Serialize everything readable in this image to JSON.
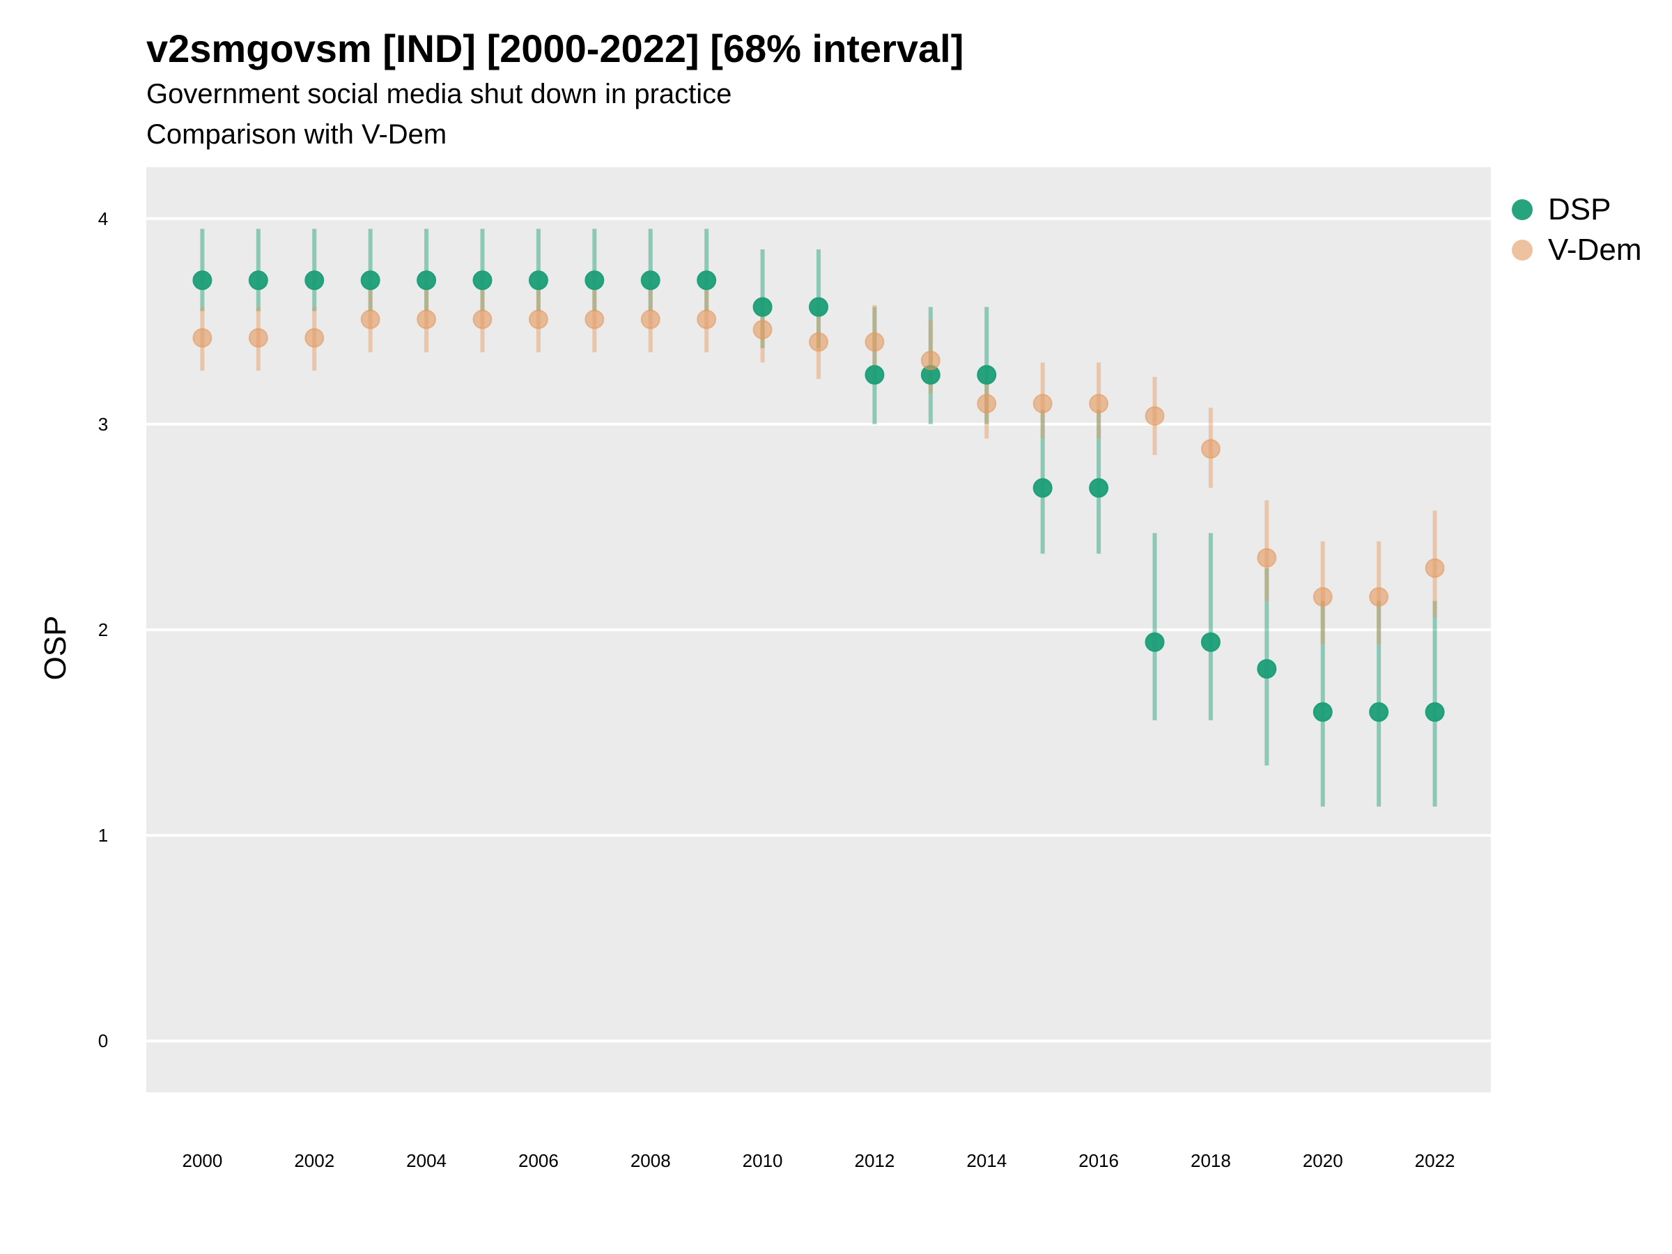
{
  "title": "v2smgovsm [IND] [2000-2022] [68% interval]",
  "subtitle_line1": "Government social media shut down in practice",
  "subtitle_line2": "Comparison with V-Dem",
  "chart_data": {
    "type": "scatter",
    "title": "v2smgovsm [IND] [2000-2022] [68% interval]",
    "subtitle": "Government social media shut down in practice / Comparison with V-Dem",
    "xlabel": "",
    "ylabel": "OSP",
    "ylim": [
      -0.25,
      4.25
    ],
    "xlim": [
      1999,
      2023
    ],
    "y_ticks": [
      0,
      1,
      2,
      3,
      4
    ],
    "x_ticks": [
      2000,
      2002,
      2004,
      2006,
      2008,
      2010,
      2012,
      2014,
      2016,
      2018,
      2020,
      2022
    ],
    "grid": "horizontal",
    "legend_position": "right",
    "x": [
      2000,
      2001,
      2002,
      2003,
      2004,
      2005,
      2006,
      2007,
      2008,
      2009,
      2010,
      2011,
      2012,
      2013,
      2014,
      2015,
      2016,
      2017,
      2018,
      2019,
      2020,
      2021,
      2022
    ],
    "series": [
      {
        "name": "DSP",
        "color": "#1b9e77",
        "values": [
          3.7,
          3.7,
          3.7,
          3.7,
          3.7,
          3.7,
          3.7,
          3.7,
          3.7,
          3.7,
          3.57,
          3.57,
          3.24,
          3.24,
          3.24,
          2.69,
          2.69,
          1.94,
          1.94,
          1.81,
          1.6,
          1.6,
          1.6
        ],
        "lower": [
          3.55,
          3.55,
          3.55,
          3.55,
          3.55,
          3.55,
          3.55,
          3.55,
          3.55,
          3.55,
          3.37,
          3.37,
          3.0,
          3.0,
          3.0,
          2.37,
          2.37,
          1.56,
          1.56,
          1.34,
          1.14,
          1.14,
          1.14
        ],
        "upper": [
          3.95,
          3.95,
          3.95,
          3.95,
          3.95,
          3.95,
          3.95,
          3.95,
          3.95,
          3.95,
          3.85,
          3.85,
          3.57,
          3.57,
          3.57,
          3.07,
          3.07,
          2.47,
          2.47,
          2.3,
          2.14,
          2.14,
          2.14
        ]
      },
      {
        "name": "V-Dem",
        "color": "#e59a5f",
        "values": [
          3.42,
          3.42,
          3.42,
          3.51,
          3.51,
          3.51,
          3.51,
          3.51,
          3.51,
          3.51,
          3.46,
          3.4,
          3.4,
          3.31,
          3.1,
          3.1,
          3.1,
          3.04,
          2.88,
          2.35,
          2.16,
          2.16,
          2.3
        ],
        "lower": [
          3.26,
          3.26,
          3.26,
          3.35,
          3.35,
          3.35,
          3.35,
          3.35,
          3.35,
          3.35,
          3.3,
          3.22,
          3.22,
          3.15,
          2.93,
          2.93,
          2.93,
          2.85,
          2.69,
          2.14,
          1.93,
          1.93,
          2.06
        ],
        "upper": [
          3.57,
          3.57,
          3.57,
          3.66,
          3.66,
          3.66,
          3.66,
          3.66,
          3.66,
          3.66,
          3.61,
          3.57,
          3.58,
          3.51,
          3.25,
          3.3,
          3.3,
          3.23,
          3.08,
          2.63,
          2.43,
          2.43,
          2.58
        ]
      }
    ]
  }
}
